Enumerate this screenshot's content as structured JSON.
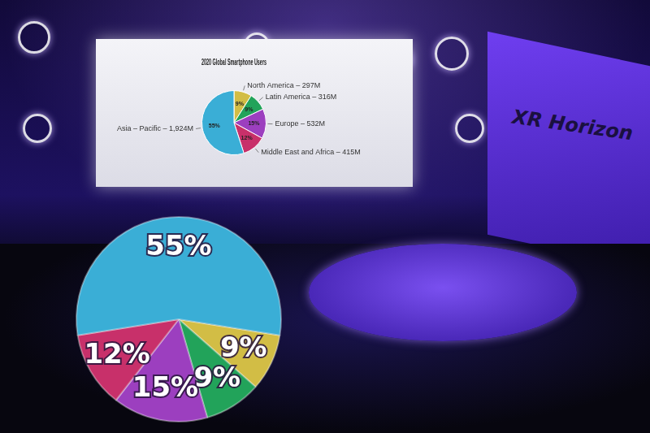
{
  "chart_data": {
    "type": "pie",
    "title": "2020 Global Smartphone Users",
    "categories": [
      "North America – 297M",
      "Latin America – 316M",
      "Europe – 532M",
      "Middle East and Africa – 415M",
      "Asia – Pacific – 1,924M"
    ],
    "values": [
      9,
      9,
      15,
      12,
      55
    ],
    "value_labels": [
      "9%",
      "9%",
      "15%",
      "12%",
      "55%"
    ],
    "colors": [
      "#d2bd45",
      "#22a35a",
      "#9c3fbf",
      "#c8306a",
      "#3aaed6"
    ],
    "data_labels": true,
    "annotations": [
      "XR Horizon"
    ]
  }
}
